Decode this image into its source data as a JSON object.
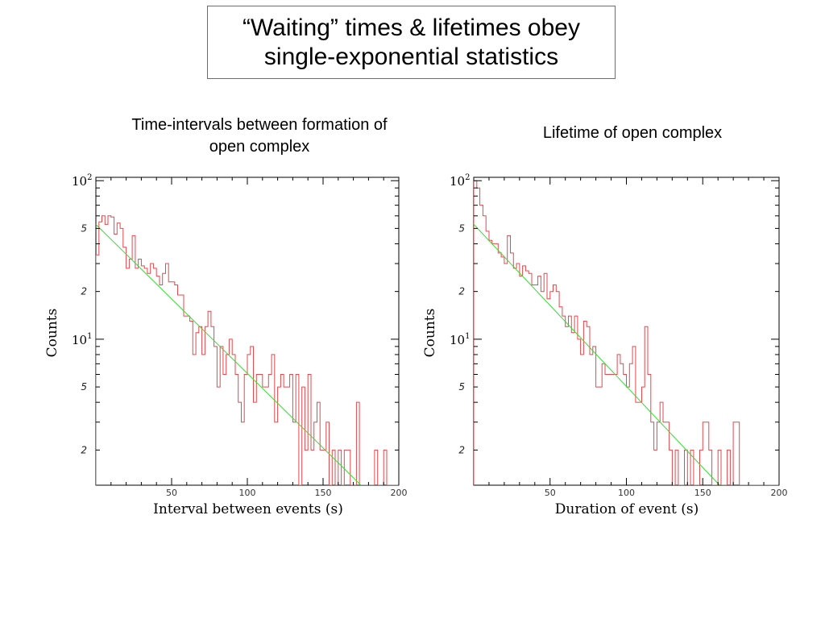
{
  "slide": {
    "title_line1": "“Waiting” times & lifetimes obey",
    "title_line2": "single-exponential statistics"
  },
  "chart_data": [
    {
      "type": "histogram",
      "title": "Time-intervals between formation of open complex",
      "title_line1": "Time-intervals between formation of",
      "title_line2": "open complex",
      "xlabel": "Interval between events (s)",
      "ylabel": "Counts",
      "xlim": [
        0,
        200
      ],
      "ylim": [
        1.2,
        105
      ],
      "yscale": "log",
      "x_ticks": [
        50,
        100,
        150,
        200
      ],
      "y_decade_ticks": [
        {
          "base": "10",
          "exp": "2",
          "value": 100
        },
        {
          "base": "10",
          "exp": "1",
          "value": 10
        }
      ],
      "y_minor_labels": [
        {
          "label": "5",
          "value": 50
        },
        {
          "label": "2",
          "value": 20
        },
        {
          "label": "5",
          "value": 5
        },
        {
          "label": "2",
          "value": 2
        }
      ],
      "histogram_color": "#e8474d",
      "fit_color": "#33dd33",
      "bin_width": 2,
      "bin_start": 0,
      "counts": [
        34,
        55,
        60,
        53,
        60,
        59,
        46,
        54,
        50,
        38,
        28,
        32,
        45,
        28,
        32,
        29,
        28,
        26,
        30,
        28,
        25,
        22,
        26,
        30,
        23,
        23,
        22,
        19,
        19,
        14,
        14,
        13,
        8,
        11,
        12,
        8,
        12,
        15,
        12,
        9,
        5,
        9,
        6,
        8,
        10,
        8,
        6,
        4,
        3,
        6,
        8,
        9,
        4,
        6,
        6,
        5,
        5,
        6,
        8,
        3,
        5,
        6,
        5,
        5,
        6,
        3,
        6,
        1,
        5,
        2,
        6,
        2,
        3,
        4,
        2,
        2,
        3,
        1,
        2,
        1,
        2,
        1,
        2,
        2,
        1,
        1,
        4,
        1,
        1,
        1,
        1,
        1,
        2,
        1,
        1,
        2,
        1,
        1,
        1,
        1
      ],
      "fit": {
        "x": [
          0,
          175
        ],
        "y": [
          53,
          1.2
        ]
      }
    },
    {
      "type": "histogram",
      "title": "Lifetime of open complex",
      "xlabel": "Duration of event (s)",
      "ylabel": "Counts",
      "xlim": [
        0,
        200
      ],
      "ylim": [
        1.2,
        105
      ],
      "yscale": "log",
      "x_ticks": [
        50,
        100,
        150,
        200
      ],
      "y_decade_ticks": [
        {
          "base": "10",
          "exp": "2",
          "value": 100
        },
        {
          "base": "10",
          "exp": "1",
          "value": 10
        }
      ],
      "y_minor_labels": [
        {
          "label": "5",
          "value": 50
        },
        {
          "label": "2",
          "value": 20
        },
        {
          "label": "5",
          "value": 5
        },
        {
          "label": "2",
          "value": 2
        }
      ],
      "histogram_color": "#e8474d",
      "fit_color": "#33dd33",
      "bin_width": 2,
      "bin_start": 0,
      "counts": [
        100,
        90,
        70,
        60,
        48,
        42,
        40,
        40,
        35,
        33,
        30,
        45,
        35,
        28,
        30,
        25,
        29,
        27,
        26,
        22,
        22,
        25,
        20,
        26,
        18,
        20,
        22,
        20,
        16,
        14,
        12,
        14,
        11,
        14,
        10,
        8,
        13,
        12,
        8,
        9,
        5,
        5,
        7,
        6,
        6,
        6,
        6,
        8,
        7,
        6,
        5,
        7,
        9,
        4,
        4,
        5,
        12,
        6,
        3,
        2,
        3,
        4,
        3,
        3,
        2,
        1,
        2,
        1,
        1,
        2,
        1,
        2,
        1,
        1,
        2,
        3,
        3,
        2,
        1,
        1,
        2,
        1,
        1,
        2,
        1,
        3,
        3,
        1,
        1,
        1,
        1,
        1,
        1,
        1,
        1,
        1,
        1,
        1,
        1,
        1
      ],
      "fit": {
        "x": [
          0,
          161
        ],
        "y": [
          53,
          1.2
        ]
      }
    }
  ]
}
